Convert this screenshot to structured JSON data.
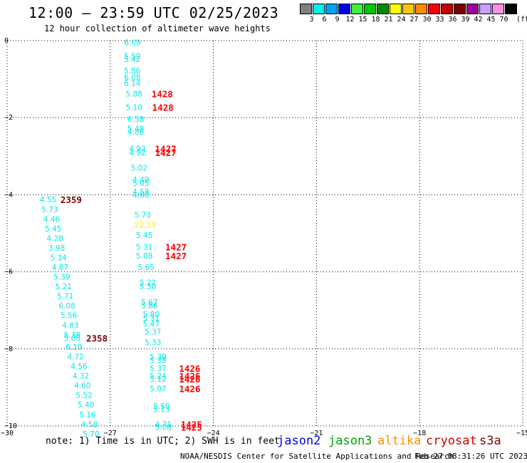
{
  "header": {
    "title": "12:00 — 23:59 UTC 02/25/2023",
    "subtitle": "12 hour collection of altimeter wave heights"
  },
  "color_scale": {
    "unit": "(ft)",
    "bins": [
      {
        "label": "3",
        "color": "#808080"
      },
      {
        "label": "6",
        "color": "#00f0f0"
      },
      {
        "label": "9",
        "color": "#00a0f0"
      },
      {
        "label": "12",
        "color": "#0000f0"
      },
      {
        "label": "15",
        "color": "#40f040"
      },
      {
        "label": "18",
        "color": "#00c800"
      },
      {
        "label": "21",
        "color": "#008c00"
      },
      {
        "label": "24",
        "color": "#ffff00"
      },
      {
        "label": "27",
        "color": "#ffc800"
      },
      {
        "label": "30",
        "color": "#ff8c00"
      },
      {
        "label": "33",
        "color": "#ff0000"
      },
      {
        "label": "36",
        "color": "#c80000"
      },
      {
        "label": "39",
        "color": "#800000"
      },
      {
        "label": "42",
        "color": "#a000a0"
      },
      {
        "label": "45",
        "color": "#c8a0ff"
      },
      {
        "label": "70",
        "color": "#ff90e0"
      },
      {
        "label": "",
        "color": "#000000"
      }
    ]
  },
  "chart_data": {
    "type": "scatter",
    "xlim": [
      -30,
      -15
    ],
    "ylim": [
      -10,
      0
    ],
    "x_ticks": [
      "−30",
      "−27",
      "−24",
      "−21",
      "−18",
      "−15"
    ],
    "y_ticks": [
      "0",
      "−2",
      "−4",
      "−6",
      "−8",
      "−10"
    ],
    "grid": true,
    "value_colors": {
      "cyan": "#00e8e8",
      "yellow": "#ffe800"
    },
    "time_colors": {
      "red": "#ff0000",
      "dark": "#800000"
    },
    "swh_labels": [
      {
        "x": -26.6,
        "y": -0.05,
        "text": "6.69",
        "c": "cyan"
      },
      {
        "x": -26.6,
        "y": -0.4,
        "text": "5.59",
        "c": "cyan"
      },
      {
        "x": -26.6,
        "y": -0.48,
        "text": "5.42",
        "c": "cyan"
      },
      {
        "x": -26.6,
        "y": -0.78,
        "text": "5.86",
        "c": "cyan"
      },
      {
        "x": -26.6,
        "y": -0.95,
        "text": "6.08",
        "c": "cyan"
      },
      {
        "x": -26.6,
        "y": -1.1,
        "text": "6.14",
        "c": "cyan"
      },
      {
        "x": -26.55,
        "y": -1.38,
        "text": "5.88",
        "c": "cyan"
      },
      {
        "x": -26.55,
        "y": -1.73,
        "text": "5.10",
        "c": "cyan"
      },
      {
        "x": -26.5,
        "y": -2.03,
        "text": "6.38",
        "c": "cyan"
      },
      {
        "x": -26.5,
        "y": -2.28,
        "text": "5.48",
        "c": "cyan"
      },
      {
        "x": -26.5,
        "y": -2.37,
        "text": "4.86",
        "c": "cyan"
      },
      {
        "x": -26.45,
        "y": -2.8,
        "text": "4.93",
        "c": "cyan"
      },
      {
        "x": -26.45,
        "y": -2.9,
        "text": "4.92",
        "c": "cyan"
      },
      {
        "x": -26.4,
        "y": -3.3,
        "text": "5.02",
        "c": "cyan"
      },
      {
        "x": -26.35,
        "y": -3.6,
        "text": "4.49",
        "c": "cyan"
      },
      {
        "x": -26.35,
        "y": -3.7,
        "text": "5.05",
        "c": "cyan"
      },
      {
        "x": -26.35,
        "y": -3.92,
        "text": "4.58",
        "c": "cyan"
      },
      {
        "x": -26.35,
        "y": -4.0,
        "text": "4.08",
        "c": "cyan"
      },
      {
        "x": -26.3,
        "y": -4.52,
        "text": "5.73",
        "c": "cyan"
      },
      {
        "x": -26.3,
        "y": -4.78,
        "text": "22.13",
        "c": "yellow"
      },
      {
        "x": -26.25,
        "y": -5.05,
        "text": "5.45",
        "c": "cyan"
      },
      {
        "x": -26.25,
        "y": -5.35,
        "text": "5.31",
        "c": "cyan"
      },
      {
        "x": -26.25,
        "y": -5.58,
        "text": "5.08",
        "c": "cyan"
      },
      {
        "x": -26.2,
        "y": -5.88,
        "text": "5.65",
        "c": "cyan"
      },
      {
        "x": -26.15,
        "y": -6.28,
        "text": "5.22",
        "c": "cyan"
      },
      {
        "x": -26.15,
        "y": -6.38,
        "text": "5.30",
        "c": "cyan"
      },
      {
        "x": -26.1,
        "y": -6.78,
        "text": "5.67",
        "c": "cyan"
      },
      {
        "x": -26.1,
        "y": -6.88,
        "text": "5.86",
        "c": "cyan"
      },
      {
        "x": -26.05,
        "y": -7.1,
        "text": "5.80",
        "c": "cyan"
      },
      {
        "x": -26.05,
        "y": -7.2,
        "text": "5.31",
        "c": "cyan"
      },
      {
        "x": -26.05,
        "y": -7.35,
        "text": "5.47",
        "c": "cyan"
      },
      {
        "x": -26.0,
        "y": -7.55,
        "text": "5.37",
        "c": "cyan"
      },
      {
        "x": -26.0,
        "y": -7.83,
        "text": "5.33",
        "c": "cyan"
      },
      {
        "x": -25.85,
        "y": -8.2,
        "text": "5.39",
        "c": "cyan"
      },
      {
        "x": -25.85,
        "y": -8.3,
        "text": "5.38",
        "c": "cyan"
      },
      {
        "x": -25.85,
        "y": -8.5,
        "text": "5.37",
        "c": "cyan"
      },
      {
        "x": -25.85,
        "y": -8.7,
        "text": "5.24",
        "c": "cyan"
      },
      {
        "x": -25.85,
        "y": -8.78,
        "text": "5.12",
        "c": "cyan"
      },
      {
        "x": -25.85,
        "y": -9.03,
        "text": "5.07",
        "c": "cyan"
      },
      {
        "x": -25.75,
        "y": -9.48,
        "text": "5.50",
        "c": "cyan"
      },
      {
        "x": -25.75,
        "y": -9.57,
        "text": "5.13",
        "c": "cyan"
      },
      {
        "x": -25.7,
        "y": -9.95,
        "text": "4.71",
        "c": "cyan"
      },
      {
        "x": -25.7,
        "y": -10.03,
        "text": "5.08",
        "c": "cyan"
      },
      {
        "x": -29.05,
        "y": -4.12,
        "text": "4.55",
        "c": "cyan"
      },
      {
        "x": -29.0,
        "y": -4.38,
        "text": "5.73",
        "c": "cyan"
      },
      {
        "x": -28.95,
        "y": -4.63,
        "text": "4.46",
        "c": "cyan"
      },
      {
        "x": -28.9,
        "y": -4.88,
        "text": "5.45",
        "c": "cyan"
      },
      {
        "x": -28.85,
        "y": -5.13,
        "text": "4.28",
        "c": "cyan"
      },
      {
        "x": -28.8,
        "y": -5.38,
        "text": "3.98",
        "c": "cyan"
      },
      {
        "x": -28.75,
        "y": -5.63,
        "text": "5.34",
        "c": "cyan"
      },
      {
        "x": -28.7,
        "y": -5.88,
        "text": "4.87",
        "c": "cyan"
      },
      {
        "x": -28.65,
        "y": -6.13,
        "text": "5.39",
        "c": "cyan"
      },
      {
        "x": -28.6,
        "y": -6.38,
        "text": "5.21",
        "c": "cyan"
      },
      {
        "x": -28.55,
        "y": -6.63,
        "text": "5.71",
        "c": "cyan"
      },
      {
        "x": -28.5,
        "y": -6.88,
        "text": "6.08",
        "c": "cyan"
      },
      {
        "x": -28.45,
        "y": -7.13,
        "text": "5.56",
        "c": "cyan"
      },
      {
        "x": -28.4,
        "y": -7.38,
        "text": "4.83",
        "c": "cyan"
      },
      {
        "x": -28.35,
        "y": -7.63,
        "text": "5.38",
        "c": "cyan"
      },
      {
        "x": -28.35,
        "y": -7.72,
        "text": "5.08",
        "c": "cyan"
      },
      {
        "x": -28.3,
        "y": -7.95,
        "text": "6.19",
        "c": "cyan"
      },
      {
        "x": -28.25,
        "y": -8.2,
        "text": "4.72",
        "c": "cyan"
      },
      {
        "x": -28.15,
        "y": -8.45,
        "text": "4.56",
        "c": "cyan"
      },
      {
        "x": -28.1,
        "y": -8.7,
        "text": "4.32",
        "c": "cyan"
      },
      {
        "x": -28.05,
        "y": -8.95,
        "text": "4.60",
        "c": "cyan"
      },
      {
        "x": -28.0,
        "y": -9.2,
        "text": "5.52",
        "c": "cyan"
      },
      {
        "x": -27.95,
        "y": -9.45,
        "text": "5.40",
        "c": "cyan"
      },
      {
        "x": -27.9,
        "y": -9.7,
        "text": "5.16",
        "c": "cyan"
      },
      {
        "x": -27.85,
        "y": -9.95,
        "text": "4.58",
        "c": "cyan"
      },
      {
        "x": -27.8,
        "y": -10.2,
        "text": "5.70",
        "c": "cyan"
      }
    ],
    "time_labels": [
      {
        "x": -25.8,
        "y": -1.38,
        "text": "1428",
        "c": "red"
      },
      {
        "x": -25.78,
        "y": -1.73,
        "text": "1428",
        "c": "red"
      },
      {
        "x": -25.7,
        "y": -2.8,
        "text": "1427",
        "c": "red"
      },
      {
        "x": -25.7,
        "y": -2.9,
        "text": "1427",
        "c": "red"
      },
      {
        "x": -25.4,
        "y": -5.35,
        "text": "1427",
        "c": "red"
      },
      {
        "x": -25.4,
        "y": -5.58,
        "text": "1427",
        "c": "red"
      },
      {
        "x": -25.0,
        "y": -8.5,
        "text": "1426",
        "c": "red"
      },
      {
        "x": -25.0,
        "y": -8.7,
        "text": "1426",
        "c": "red"
      },
      {
        "x": -25.0,
        "y": -8.78,
        "text": "1426",
        "c": "red"
      },
      {
        "x": -25.0,
        "y": -9.03,
        "text": "1426",
        "c": "red"
      },
      {
        "x": -24.95,
        "y": -9.95,
        "text": "1425",
        "c": "red"
      },
      {
        "x": -24.95,
        "y": -10.03,
        "text": "1425",
        "c": "red"
      },
      {
        "x": -28.45,
        "y": -4.12,
        "text": "2359",
        "c": "dark"
      },
      {
        "x": -27.7,
        "y": -7.72,
        "text": "2358",
        "c": "dark"
      }
    ]
  },
  "footer": {
    "note": "note: 1) Time is in UTC; 2) SWH is in feet",
    "satellites": [
      {
        "label": "jason2",
        "color": "#0000f0",
        "x": 389
      },
      {
        "label": "jason3",
        "color": "#00a000",
        "x": 461
      },
      {
        "label": "altika",
        "color": "#ff9000",
        "x": 530
      },
      {
        "label": "cryosat",
        "color": "#d00000",
        "x": 598
      },
      {
        "label": "s3a",
        "color": "#800000",
        "x": 673
      }
    ],
    "credit": "NOAA/NESDIS Center for Satellite Applications and Research",
    "timestamp": "Feb 27 08:31:26 UTC 2023"
  }
}
